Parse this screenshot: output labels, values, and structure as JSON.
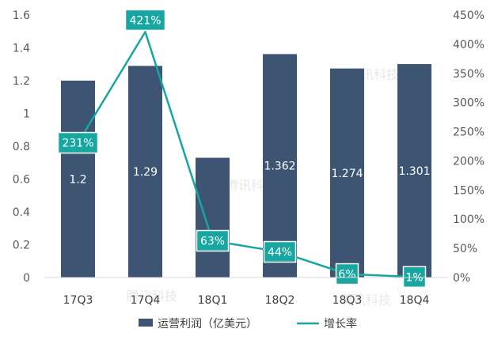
{
  "chart_data": {
    "type": "bar",
    "categories": [
      "17Q3",
      "17Q4",
      "18Q1",
      "18Q2",
      "18Q3",
      "18Q4"
    ],
    "series": [
      {
        "name": "运营利润（亿美元）",
        "type": "bar",
        "axis": "left",
        "color": "#3d5573",
        "values": [
          1.2,
          1.29,
          0.73,
          1.362,
          1.274,
          1.301
        ],
        "data_labels": [
          "1.2",
          "1.29",
          "",
          "1.362",
          "1.274",
          "1.301"
        ]
      },
      {
        "name": "增长率",
        "type": "line",
        "axis": "right",
        "color": "#17a6a0",
        "values": [
          231,
          421,
          63,
          44,
          6,
          1
        ],
        "data_labels": [
          "231%",
          "421%",
          "63%",
          "44%",
          "6%",
          "1%"
        ]
      }
    ],
    "y_left": {
      "ylim": [
        0,
        1.6
      ],
      "ticks": [
        "0",
        "0.2",
        "0.4",
        "0.6",
        "0.8",
        "1",
        "1.2",
        "1.4",
        "1.6"
      ]
    },
    "y_right": {
      "ylim": [
        0,
        450
      ],
      "ticks": [
        "0%",
        "50%",
        "100%",
        "150%",
        "200%",
        "250%",
        "300%",
        "350%",
        "400%",
        "450%"
      ]
    },
    "legend": {
      "position": "bottom"
    },
    "grid": false,
    "watermark": "腾讯科技"
  }
}
